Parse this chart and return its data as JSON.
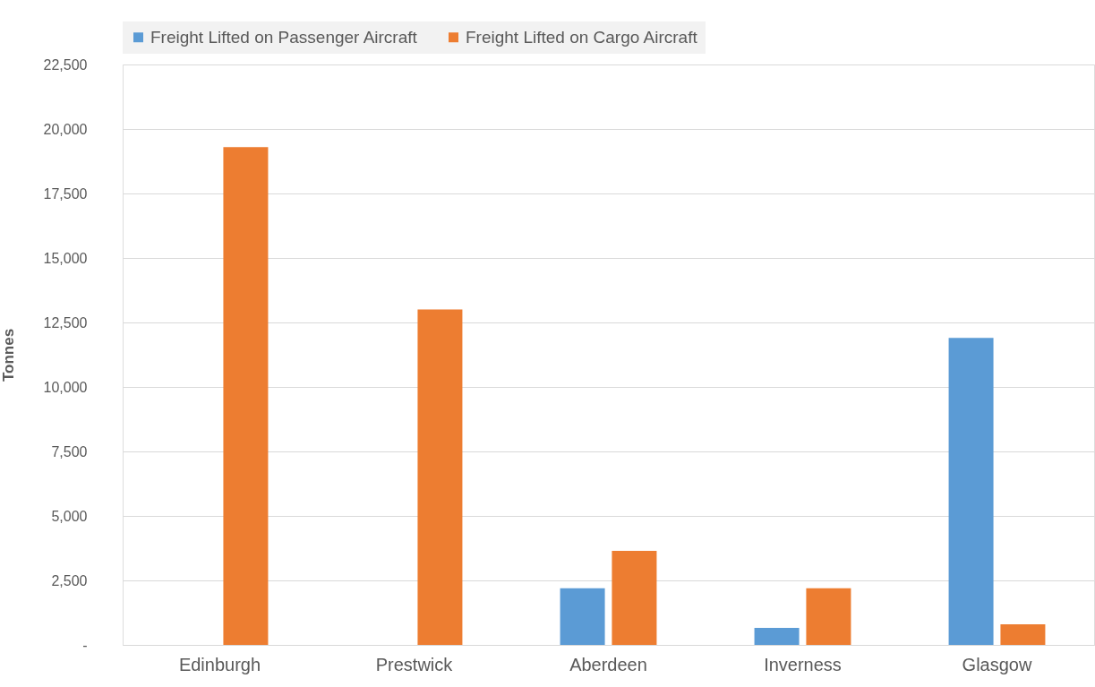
{
  "chart_data": {
    "type": "bar",
    "ylabel": "Tonnes",
    "categories": [
      "Edinburgh",
      "Prestwick",
      "Aberdeen",
      "Inverness",
      "Glasgow"
    ],
    "series": [
      {
        "name": "Freight Lifted on Passenger Aircraft",
        "color": "#5b9bd5",
        "values": [
          null,
          null,
          2200,
          660,
          11900
        ]
      },
      {
        "name": "Freight Lifted on Cargo Aircraft",
        "color": "#ed7d31",
        "values": [
          19300,
          13000,
          3650,
          2200,
          800
        ]
      }
    ],
    "ylim": [
      0,
      22500
    ],
    "yticks": [
      {
        "value": 0,
        "label": "-"
      },
      {
        "value": 2500,
        "label": "2,500"
      },
      {
        "value": 5000,
        "label": "5,000"
      },
      {
        "value": 7500,
        "label": "7,500"
      },
      {
        "value": 10000,
        "label": "10,000"
      },
      {
        "value": 12500,
        "label": "12,500"
      },
      {
        "value": 15000,
        "label": "15,000"
      },
      {
        "value": 17500,
        "label": "17,500"
      },
      {
        "value": 20000,
        "label": "20,000"
      },
      {
        "value": 22500,
        "label": "22,500"
      }
    ],
    "grid": "y",
    "legend": "top"
  }
}
